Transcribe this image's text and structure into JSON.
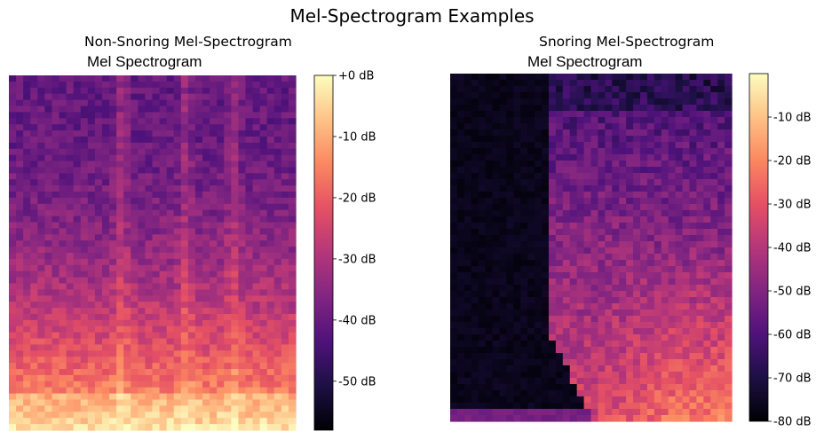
{
  "figure": {
    "title": "Mel-Spectrogram Examples"
  },
  "panels": [
    {
      "subtitle": "Non-Snoring Mel-Spectrogram",
      "image_title": "Mel Spectrogram"
    },
    {
      "subtitle": "Snoring Mel-Spectrogram",
      "image_title": "Mel Spectrogram"
    }
  ],
  "colors": {
    "colormap": "magma"
  },
  "chart_data": [
    {
      "type": "heatmap",
      "title": "Non-Snoring Mel-Spectrogram",
      "subtitle": "Mel Spectrogram",
      "colormap": "magma",
      "axes": "off",
      "colorbar": {
        "range_db": [
          -58,
          0
        ],
        "ticks": [
          0,
          -10,
          -20,
          -30,
          -40,
          -50
        ],
        "tick_labels": [
          "+0 dB",
          "-10 dB",
          "-20 dB",
          "-30 dB",
          "-40 dB",
          "-50 dB"
        ]
      },
      "description_of_values": {
        "low_mel_bands_db": -8,
        "mid_mel_bands_db": -35,
        "high_mel_bands_db": -42,
        "bright_vertical_bands_at_time_fraction": [
          0.39,
          0.62,
          0.79
        ]
      }
    },
    {
      "type": "heatmap",
      "title": "Snoring Mel-Spectrogram",
      "subtitle": "Mel Spectrogram",
      "colormap": "magma",
      "axes": "off",
      "colorbar": {
        "range_db": [
          -80,
          0
        ],
        "ticks": [
          -10,
          -20,
          -30,
          -40,
          -50,
          -60,
          -70,
          -80
        ],
        "tick_labels": [
          "-10 dB",
          "-20 dB",
          "-30 dB",
          "-40 dB",
          "-50 dB",
          "-60 dB",
          "-70 dB",
          "-80 dB"
        ]
      },
      "description_of_values": {
        "silent_region_time_fraction": [
          0,
          0.35
        ],
        "silent_region_db": -80,
        "active_low_mel_db": -12,
        "active_mid_mel_db": -45,
        "active_high_mel_db": -60
      }
    }
  ]
}
